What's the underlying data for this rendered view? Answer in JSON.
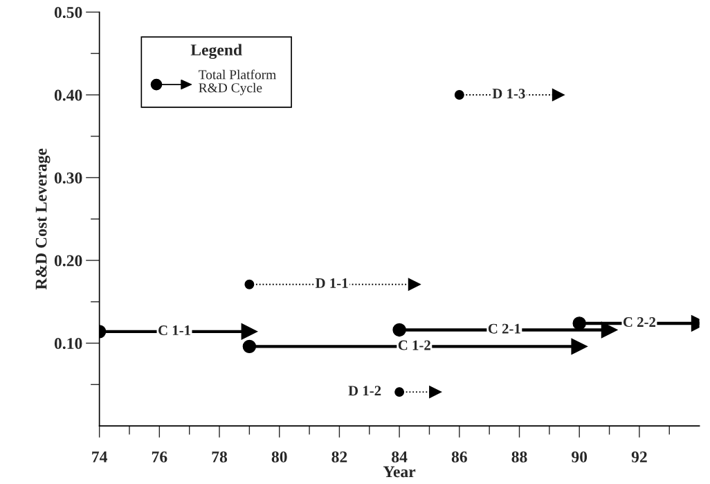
{
  "chart_data": {
    "type": "line",
    "xlabel": "Year",
    "ylabel": "R&D Cost Leverage",
    "legend_title": "Legend",
    "annotations": [
      "Total Platform\nR&D Cycle"
    ],
    "xlim": [
      74,
      94
    ],
    "xticks": [
      74,
      {
        "value": 75,
        "label": null
      },
      76,
      {
        "value": 77,
        "label": null
      },
      78,
      {
        "value": 79,
        "label": null
      },
      80,
      {
        "value": 81,
        "label": null
      },
      82,
      {
        "value": 83,
        "label": null
      },
      84,
      {
        "value": 85,
        "label": null
      },
      86,
      {
        "value": 87,
        "label": null
      },
      88,
      {
        "value": 89,
        "label": null
      },
      90,
      {
        "value": 91,
        "label": null
      },
      92,
      {
        "value": 93,
        "label": null
      }
    ],
    "ylim": [
      0,
      0.5
    ],
    "yticks": [
      {
        "value": 0.05,
        "label": null
      },
      {
        "value": 0.1,
        "label": "0.10"
      },
      {
        "value": 0.15,
        "label": null
      },
      {
        "value": 0.2,
        "label": "0.20"
      },
      {
        "value": 0.25,
        "label": null
      },
      {
        "value": 0.3,
        "label": "0.30"
      },
      {
        "value": 0.35,
        "label": null
      },
      {
        "value": 0.4,
        "label": "0.40"
      },
      {
        "value": 0.45,
        "label": null
      },
      {
        "value": 0.5,
        "label": "0.50"
      }
    ],
    "grid": false,
    "marker": "circle",
    "series": [
      {
        "name": "C 1-1",
        "color": "#000000",
        "line_style": "solid",
        "x": [
          74,
          79
        ],
        "values": [
          0.114,
          0.114
        ]
      },
      {
        "name": "C 1-2",
        "color": "#000000",
        "line_style": "solid",
        "x": [
          79,
          90
        ],
        "values": [
          0.096,
          0.096
        ]
      },
      {
        "name": "C 2-1",
        "color": "#000000",
        "line_style": "solid",
        "x": [
          84,
          91
        ],
        "values": [
          0.116,
          0.116
        ]
      },
      {
        "name": "C 2-2",
        "color": "#000000",
        "line_style": "solid",
        "x": [
          90,
          94
        ],
        "values": [
          0.124,
          0.124
        ]
      },
      {
        "name": "D 1-1",
        "color": "#000000",
        "line_style": "dotted",
        "x": [
          79,
          84.5
        ],
        "values": [
          0.171,
          0.171
        ]
      },
      {
        "name": "D 1-2",
        "color": "#000000",
        "line_style": "dotted",
        "x": [
          84,
          85.2
        ],
        "values": [
          0.041,
          0.041
        ]
      },
      {
        "name": "D 1-3",
        "color": "#000000",
        "line_style": "dotted",
        "x": [
          86,
          89.3
        ],
        "values": [
          0.4,
          0.4
        ]
      }
    ]
  }
}
